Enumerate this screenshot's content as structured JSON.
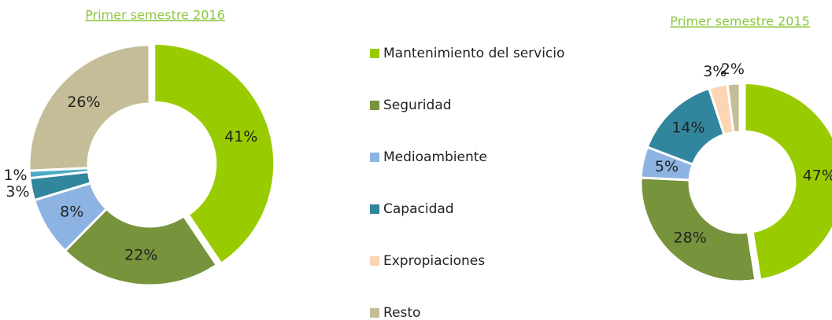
{
  "chart_data": [
    {
      "type": "pie",
      "title": "Primer semestre 2016",
      "categories": [
        "Mantenimiento del servicio",
        "Seguridad",
        "Medioambiente",
        "Capacidad",
        "Expropiaciones",
        "Resto"
      ],
      "values": [
        41,
        22,
        8,
        3,
        1,
        26
      ],
      "value_labels": [
        "41%",
        "22%",
        "8%",
        "3%",
        "1%",
        "26%"
      ],
      "colors": [
        "#99cc00",
        "#77933c",
        "#8db3e2",
        "#31859c",
        "#4bacc6",
        "#c4bd97"
      ]
    },
    {
      "type": "pie",
      "title": "Primer semestre 2015",
      "categories": [
        "Mantenimiento del servicio",
        "Seguridad",
        "Medioambiente",
        "Capacidad",
        "Expropiaciones",
        "Resto"
      ],
      "values": [
        47,
        28,
        5,
        14,
        3,
        2
      ],
      "value_labels": [
        "47%",
        "28%",
        "5%",
        "14%",
        "3%",
        "2%"
      ],
      "colors": [
        "#99cc00",
        "#77933c",
        "#8db3e2",
        "#31859c",
        "#fcd5b5",
        "#c4bd97"
      ]
    }
  ]
}
